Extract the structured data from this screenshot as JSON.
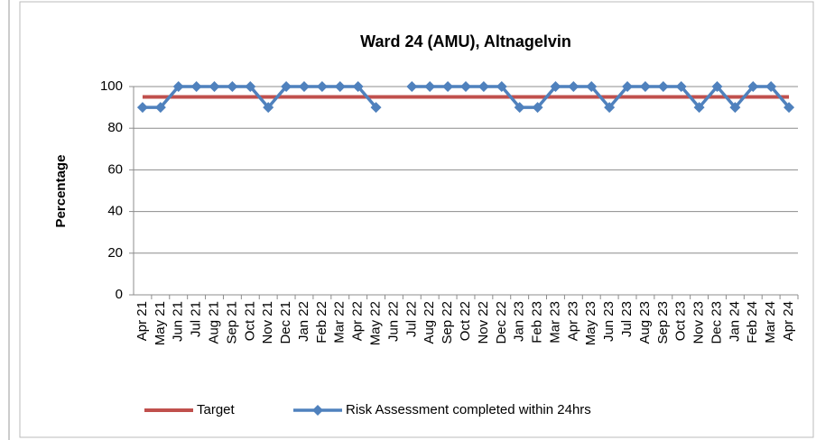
{
  "chart_data": {
    "type": "line",
    "title": "Ward 24 (AMU), Altnagelvin",
    "y_label": "Percentage",
    "categories": [
      "Apr 21",
      "May 21",
      "Jun 21",
      "Jul 21",
      "Aug 21",
      "Sep 21",
      "Oct 21",
      "Nov 21",
      "Dec 21",
      "Jan 22",
      "Feb 22",
      "Mar 22",
      "Apr 22",
      "May 22",
      "Jun 22",
      "Jul 22",
      "Aug 22",
      "Sep 22",
      "Oct 22",
      "Nov 22",
      "Dec 22",
      "Jan 23",
      "Feb 23",
      "Mar 23",
      "Apr 23",
      "May 23",
      "Jun 23",
      "Jul 23",
      "Aug 23",
      "Sep 23",
      "Oct 23",
      "Nov 23",
      "Dec 23",
      "Jan 24",
      "Feb 24",
      "Mar 24",
      "Apr 24"
    ],
    "series": [
      {
        "name": "Target",
        "color": "#c0504d",
        "values": [
          95,
          95,
          95,
          95,
          95,
          95,
          95,
          95,
          95,
          95,
          95,
          95,
          95,
          95,
          95,
          95,
          95,
          95,
          95,
          95,
          95,
          95,
          95,
          95,
          95,
          95,
          95,
          95,
          95,
          95,
          95,
          95,
          95,
          95,
          95,
          95,
          95
        ]
      },
      {
        "name": "Risk Assessment completed within 24hrs",
        "color": "#4f81bd",
        "values": [
          90,
          90,
          100,
          100,
          100,
          100,
          100,
          90,
          100,
          100,
          100,
          100,
          100,
          90,
          null,
          100,
          100,
          100,
          100,
          100,
          100,
          90,
          90,
          100,
          100,
          100,
          90,
          100,
          100,
          100,
          100,
          90,
          100,
          90,
          100,
          100,
          90
        ]
      }
    ],
    "ylim": [
      0,
      100
    ],
    "yticks": [
      0,
      20,
      40,
      60,
      80,
      100
    ],
    "grid": true,
    "legend": "bottom"
  }
}
